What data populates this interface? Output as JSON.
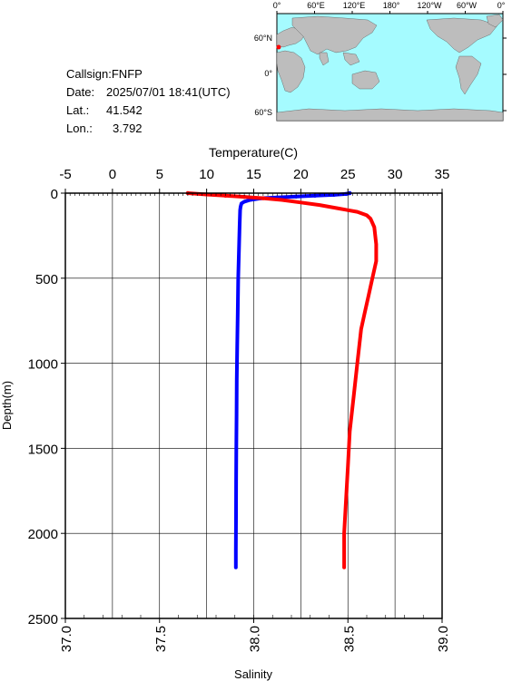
{
  "info": {
    "callsign_label": "Callsign:",
    "callsign": "FNFP",
    "date_label": "Date:",
    "date": "2025/07/01 18:41(UTC)",
    "lat_label": "Lat.:",
    "lat": "41.542",
    "lon_label": "Lon.:",
    "lon": "3.792"
  },
  "map": {
    "top_labels": [
      "0°",
      "60°E",
      "120°E",
      "180°",
      "120°W",
      "60°W",
      "0°"
    ],
    "left_labels": [
      "60°N",
      "0°",
      "60°S"
    ],
    "ocean_color": "#a5fbff",
    "land_color": "#bdbdbd",
    "marker_color": "#ff0000"
  },
  "chart_data": {
    "type": "line",
    "ylabel": "Depth(m)",
    "y_ticks": [
      "0",
      "500",
      "1000",
      "1500",
      "2000",
      "2500"
    ],
    "ylim": [
      2500,
      0
    ],
    "top_axis": {
      "label": "Temperature(C)",
      "ticks": [
        "-5",
        "0",
        "5",
        "10",
        "15",
        "20",
        "25",
        "30",
        "35"
      ],
      "range": [
        -5,
        35
      ]
    },
    "bottom_axis": {
      "label": "Salinity",
      "ticks": [
        "37.0",
        "37.5",
        "38.0",
        "38.5",
        "39.0"
      ],
      "range": [
        37.0,
        39.0
      ]
    },
    "grid": true,
    "series": [
      {
        "color": "#0000ff",
        "axis": "top",
        "points": [
          [
            25.2,
            0
          ],
          [
            24.8,
            5
          ],
          [
            23.5,
            10
          ],
          [
            21.5,
            15
          ],
          [
            19.5,
            20
          ],
          [
            17.5,
            25
          ],
          [
            15.8,
            30
          ],
          [
            14.6,
            40
          ],
          [
            14.0,
            50
          ],
          [
            13.7,
            60
          ],
          [
            13.6,
            80
          ],
          [
            13.55,
            100
          ],
          [
            13.5,
            200
          ],
          [
            13.45,
            300
          ],
          [
            13.4,
            400
          ],
          [
            13.35,
            500
          ],
          [
            13.3,
            700
          ],
          [
            13.25,
            900
          ],
          [
            13.2,
            1100
          ],
          [
            13.18,
            1300
          ],
          [
            13.15,
            1500
          ],
          [
            13.13,
            1700
          ],
          [
            13.12,
            1900
          ],
          [
            13.1,
            2100
          ],
          [
            13.1,
            2200
          ]
        ]
      },
      {
        "color": "#ff0000",
        "axis": "bottom",
        "points": [
          [
            37.65,
            0
          ],
          [
            37.75,
            8
          ],
          [
            37.85,
            15
          ],
          [
            37.95,
            22
          ],
          [
            38.05,
            30
          ],
          [
            38.15,
            40
          ],
          [
            38.25,
            55
          ],
          [
            38.35,
            70
          ],
          [
            38.45,
            90
          ],
          [
            38.55,
            110
          ],
          [
            38.6,
            130
          ],
          [
            38.62,
            150
          ],
          [
            38.64,
            200
          ],
          [
            38.65,
            300
          ],
          [
            38.65,
            400
          ],
          [
            38.63,
            500
          ],
          [
            38.61,
            600
          ],
          [
            38.59,
            700
          ],
          [
            38.57,
            800
          ],
          [
            38.55,
            1000
          ],
          [
            38.53,
            1200
          ],
          [
            38.51,
            1400
          ],
          [
            38.5,
            1600
          ],
          [
            38.49,
            1800
          ],
          [
            38.48,
            2000
          ],
          [
            38.48,
            2200
          ]
        ]
      }
    ]
  }
}
